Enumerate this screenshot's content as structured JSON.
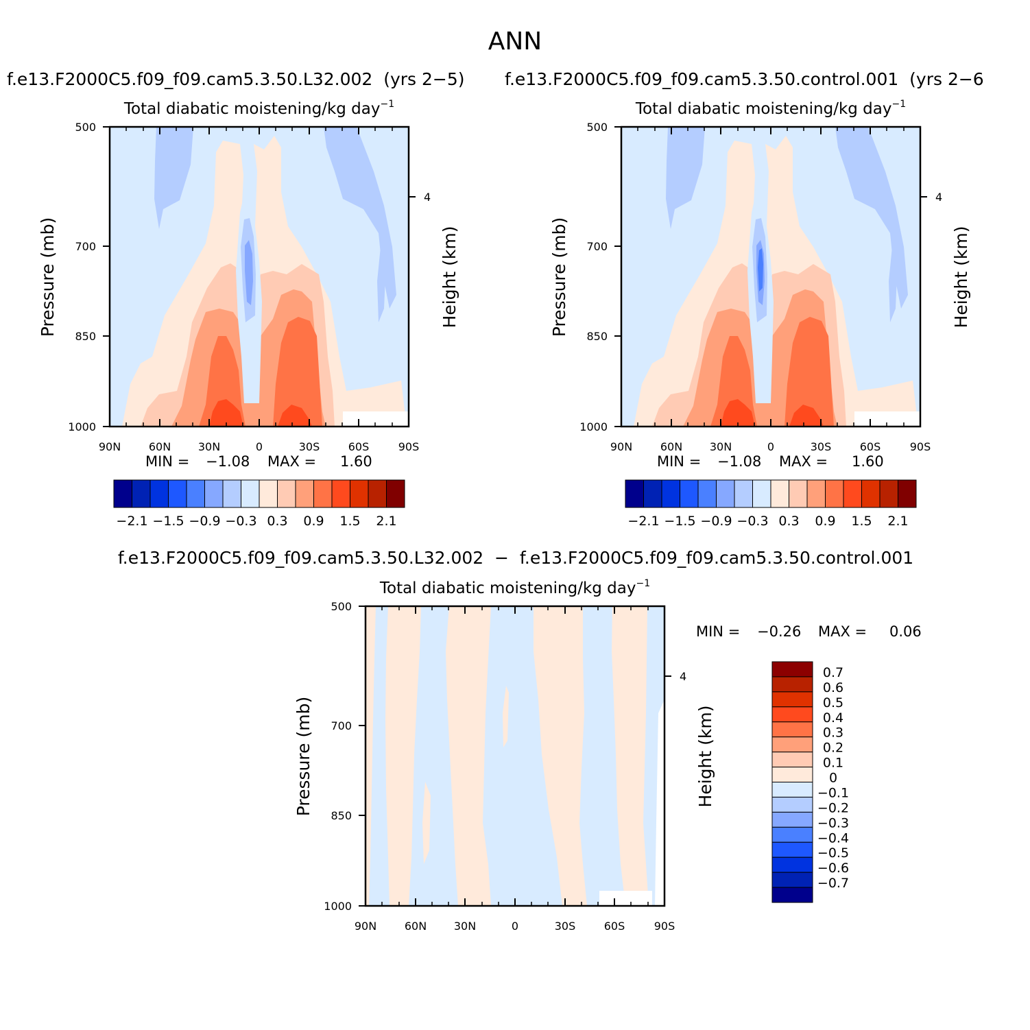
{
  "page": {
    "title": "ANN",
    "diff_title": "f.e13.F2000C5.f09_f09.cam5.3.50.L32.002  −  f.e13.F2000C5.f09_f09.cam5.3.50.control.001"
  },
  "colors": {
    "main_scale": [
      "#00008c",
      "#0022b4",
      "#0033e0",
      "#1e58ff",
      "#4a80ff",
      "#86a8ff",
      "#b4cdff",
      "#d8ebff",
      "#ffeadb",
      "#ffcbb4",
      "#ffa07a",
      "#ff7346",
      "#ff4a1e",
      "#e03200",
      "#b82200",
      "#800000"
    ],
    "diff_scale": [
      "#00008c",
      "#0022b4",
      "#0033e0",
      "#1e58ff",
      "#4a80ff",
      "#86a8ff",
      "#b4cdff",
      "#d8ebff",
      "#ffeadb",
      "#ffcbb4",
      "#ffa07a",
      "#ff7346",
      "#ff4a1e",
      "#e03200",
      "#b82200",
      "#8c0000"
    ]
  },
  "chart_data": [
    {
      "type": "heatmap",
      "panel": "case",
      "case_title": "f.e13.F2000C5.f09_f09.cam5.3.50.L32.002  (yrs 2−5)",
      "title": "Total diabatic moistening/kg day",
      "title_sup": "−1",
      "xlabel": "",
      "ylabel": "Pressure (mb)",
      "y2label": "Height (km)",
      "x_ticks": [
        "90N",
        "60N",
        "30N",
        "0",
        "30S",
        "60S",
        "90S"
      ],
      "xlim": [
        90,
        -90
      ],
      "y_ticks": [
        "500",
        "700",
        "850",
        "1000"
      ],
      "ylim": [
        1000,
        500
      ],
      "y2_ticks": [
        "4"
      ],
      "min_label": "MIN =",
      "min_value": "−1.08",
      "max_label": "MAX =",
      "max_value": "1.60",
      "colorbar_labels": [
        "−2.1",
        "−1.5",
        "−0.9",
        "−0.3",
        "0.3",
        "0.9",
        "1.5",
        "2.1"
      ],
      "contour_levels": [
        -2.1,
        -1.8,
        -1.5,
        -1.2,
        -0.9,
        -0.6,
        -0.3,
        0,
        0.3,
        0.6,
        0.9,
        1.2,
        1.5,
        1.8,
        2.1
      ]
    },
    {
      "type": "heatmap",
      "panel": "control",
      "case_title": "f.e13.F2000C5.f09_f09.cam5.3.50.control.001  (yrs 2−6",
      "title": "Total diabatic moistening/kg day",
      "title_sup": "−1",
      "xlabel": "",
      "ylabel": "Pressure (mb)",
      "y2label": "Height (km)",
      "x_ticks": [
        "90N",
        "60N",
        "30N",
        "0",
        "30S",
        "60S",
        "90S"
      ],
      "xlim": [
        90,
        -90
      ],
      "y_ticks": [
        "500",
        "700",
        "850",
        "1000"
      ],
      "ylim": [
        1000,
        500
      ],
      "y2_ticks": [
        "4"
      ],
      "min_label": "MIN =",
      "min_value": "−1.08",
      "max_label": "MAX =",
      "max_value": "1.60",
      "colorbar_labels": [
        "−2.1",
        "−1.5",
        "−0.9",
        "−0.3",
        "0.3",
        "0.9",
        "1.5",
        "2.1"
      ],
      "contour_levels": [
        -2.1,
        -1.8,
        -1.5,
        -1.2,
        -0.9,
        -0.6,
        -0.3,
        0,
        0.3,
        0.6,
        0.9,
        1.2,
        1.5,
        1.8,
        2.1
      ]
    },
    {
      "type": "heatmap",
      "panel": "difference",
      "title": "Total diabatic moistening/kg day",
      "title_sup": "−1",
      "xlabel": "",
      "ylabel": "Pressure (mb)",
      "y2label": "Height (km)",
      "x_ticks": [
        "90N",
        "60N",
        "30N",
        "0",
        "30S",
        "60S",
        "90S"
      ],
      "xlim": [
        90,
        -90
      ],
      "y_ticks": [
        "500",
        "700",
        "850",
        "1000"
      ],
      "ylim": [
        1000,
        500
      ],
      "y2_ticks": [
        "4"
      ],
      "min_label": "MIN =",
      "min_value": "−0.26",
      "max_label": "MAX =",
      "max_value": "0.06",
      "colorbar_labels": [
        "0.7",
        "0.6",
        "0.5",
        "0.4",
        "0.3",
        "0.2",
        "0.1",
        "0",
        "−0.1",
        "−0.2",
        "−0.3",
        "−0.4",
        "−0.5",
        "−0.6",
        "−0.7"
      ],
      "contour_levels": [
        -0.7,
        -0.6,
        -0.5,
        -0.4,
        -0.3,
        -0.2,
        -0.1,
        0,
        0.1,
        0.2,
        0.3,
        0.4,
        0.5,
        0.6,
        0.7
      ]
    }
  ]
}
